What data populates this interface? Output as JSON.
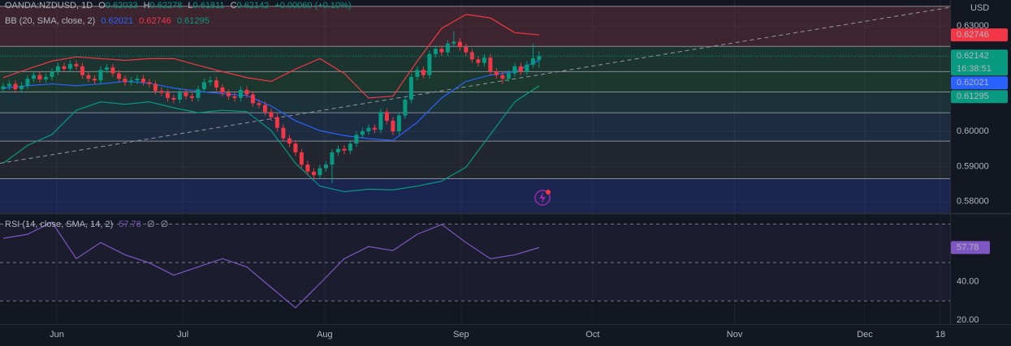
{
  "header": {
    "symbol": "OANDA:NZDUSD, 1D",
    "ohlc_keys": [
      "O",
      "H",
      "L",
      "C"
    ],
    "change": "+0.00060 (+0.10%)",
    "countdown": "16:38:51"
  },
  "chart_data": [
    {
      "type": "candlestick",
      "axis_label": "USD",
      "indicator_label": "BB (20, SMA, close, 2)",
      "xlim": [
        -0.53,
        155.5
      ],
      "xticks": [
        {
          "value": 8.8,
          "label": "Jun"
        },
        {
          "value": 29.5,
          "label": "Jul"
        },
        {
          "value": 52.8,
          "label": "Aug"
        },
        {
          "value": 75.2,
          "label": "Sep"
        },
        {
          "value": 96.8,
          "label": "Oct"
        },
        {
          "value": 120.1,
          "label": "Nov"
        },
        {
          "value": 141.5,
          "label": "Dec"
        },
        {
          "value": 153.9,
          "label": "18"
        }
      ],
      "ylim": [
        0.5767,
        0.6374
      ],
      "yticks": [
        {
          "value": 0.63,
          "label": "0.63000"
        },
        {
          "value": 0.6,
          "label": "0.60000"
        },
        {
          "value": 0.59,
          "label": "0.59000"
        },
        {
          "value": 0.58,
          "label": "0.58000"
        }
      ],
      "grid": true,
      "up_color": "#089981",
      "down_color": "#f23645",
      "open": [
        0.612,
        0.6128,
        0.6135,
        0.612,
        0.613,
        0.615,
        0.616,
        0.6148,
        0.6155,
        0.617,
        0.6185,
        0.6178,
        0.6192,
        0.6185,
        0.616,
        0.615,
        0.6145,
        0.6175,
        0.6182,
        0.6165,
        0.615,
        0.614,
        0.6145,
        0.615,
        0.614,
        0.6135,
        0.6115,
        0.611,
        0.6095,
        0.609,
        0.611,
        0.61,
        0.6095,
        0.612,
        0.614,
        0.6145,
        0.6125,
        0.611,
        0.61,
        0.6095,
        0.6118,
        0.6105,
        0.608,
        0.6075,
        0.6055,
        0.604,
        0.601,
        0.598,
        0.5965,
        0.594,
        0.5905,
        0.5885,
        0.5875,
        0.5895,
        0.5905,
        0.594,
        0.595,
        0.5945,
        0.5965,
        0.599,
        0.6,
        0.601,
        0.6005,
        0.6055,
        0.603,
        0.6,
        0.6045,
        0.609,
        0.6155,
        0.6175,
        0.616,
        0.622,
        0.6235,
        0.6225,
        0.625,
        0.6255,
        0.624,
        0.6225,
        0.6205,
        0.6195,
        0.621,
        0.617,
        0.616,
        0.615,
        0.6165,
        0.6185,
        0.617,
        0.619,
        0.62033
      ],
      "high": [
        0.6138,
        0.6145,
        0.6145,
        0.614,
        0.616,
        0.617,
        0.617,
        0.6165,
        0.618,
        0.6195,
        0.6195,
        0.6202,
        0.6202,
        0.6195,
        0.617,
        0.616,
        0.6185,
        0.6192,
        0.6192,
        0.6175,
        0.616,
        0.6155,
        0.616,
        0.616,
        0.615,
        0.6145,
        0.6125,
        0.612,
        0.6105,
        0.612,
        0.612,
        0.611,
        0.613,
        0.615,
        0.6155,
        0.6155,
        0.6135,
        0.612,
        0.611,
        0.6128,
        0.6128,
        0.6115,
        0.609,
        0.6085,
        0.6065,
        0.605,
        0.602,
        0.599,
        0.5975,
        0.595,
        0.5915,
        0.5895,
        0.5905,
        0.5915,
        0.595,
        0.596,
        0.596,
        0.5975,
        0.6,
        0.601,
        0.602,
        0.602,
        0.6065,
        0.6065,
        0.604,
        0.6055,
        0.61,
        0.6165,
        0.6185,
        0.6185,
        0.623,
        0.6245,
        0.6245,
        0.626,
        0.6285,
        0.6265,
        0.625,
        0.6235,
        0.6215,
        0.622,
        0.622,
        0.618,
        0.617,
        0.6175,
        0.6195,
        0.6195,
        0.62,
        0.625,
        0.62278
      ],
      "low": [
        0.611,
        0.6118,
        0.611,
        0.611,
        0.612,
        0.614,
        0.6138,
        0.6138,
        0.6145,
        0.616,
        0.6168,
        0.6168,
        0.6175,
        0.615,
        0.614,
        0.6135,
        0.6135,
        0.6165,
        0.6155,
        0.614,
        0.613,
        0.613,
        0.6135,
        0.613,
        0.6125,
        0.6105,
        0.61,
        0.6085,
        0.608,
        0.608,
        0.609,
        0.6085,
        0.6085,
        0.611,
        0.613,
        0.6115,
        0.61,
        0.609,
        0.6085,
        0.6085,
        0.6095,
        0.607,
        0.6065,
        0.6045,
        0.603,
        0.6,
        0.597,
        0.5955,
        0.593,
        0.5895,
        0.5875,
        0.5865,
        0.5865,
        0.5885,
        0.5852,
        0.593,
        0.5935,
        0.5935,
        0.5955,
        0.598,
        0.599,
        0.5995,
        0.5995,
        0.602,
        0.599,
        0.599,
        0.6035,
        0.608,
        0.6145,
        0.615,
        0.615,
        0.621,
        0.6215,
        0.6215,
        0.624,
        0.623,
        0.6215,
        0.6195,
        0.6185,
        0.6185,
        0.616,
        0.615,
        0.6135,
        0.614,
        0.6155,
        0.616,
        0.616,
        0.618,
        0.61811
      ],
      "close": [
        0.6128,
        0.6135,
        0.612,
        0.613,
        0.615,
        0.616,
        0.6148,
        0.6155,
        0.617,
        0.6185,
        0.6178,
        0.6192,
        0.6185,
        0.616,
        0.615,
        0.6145,
        0.6175,
        0.6182,
        0.6165,
        0.615,
        0.614,
        0.6145,
        0.615,
        0.614,
        0.6135,
        0.6115,
        0.611,
        0.6095,
        0.609,
        0.611,
        0.61,
        0.6095,
        0.612,
        0.614,
        0.6145,
        0.6125,
        0.611,
        0.61,
        0.6095,
        0.6118,
        0.6105,
        0.608,
        0.6075,
        0.6055,
        0.604,
        0.601,
        0.598,
        0.5965,
        0.594,
        0.5905,
        0.5885,
        0.5875,
        0.5895,
        0.5905,
        0.594,
        0.595,
        0.5945,
        0.5965,
        0.599,
        0.6,
        0.601,
        0.6005,
        0.6055,
        0.603,
        0.6,
        0.6045,
        0.609,
        0.6155,
        0.6175,
        0.616,
        0.622,
        0.6235,
        0.6225,
        0.625,
        0.6255,
        0.624,
        0.6225,
        0.6205,
        0.6195,
        0.621,
        0.617,
        0.616,
        0.615,
        0.6165,
        0.6185,
        0.617,
        0.619,
        0.6208,
        0.62142
      ],
      "overlays": [
        {
          "color": "#2962ff",
          "x": [
            0,
            4,
            8,
            12,
            16,
            20,
            24,
            28,
            32,
            36,
            40,
            44,
            48,
            52,
            56,
            60,
            64,
            68,
            72,
            76,
            80,
            84,
            88
          ],
          "values": [
            0.6123,
            0.613,
            0.6135,
            0.613,
            0.6135,
            0.6142,
            0.6137,
            0.6123,
            0.6114,
            0.6107,
            0.6102,
            0.6072,
            0.603,
            0.6002,
            0.5988,
            0.5979,
            0.5974,
            0.6026,
            0.6095,
            0.6142,
            0.616,
            0.617,
            0.62021
          ]
        },
        {
          "color": "#f23645",
          "x": [
            0,
            4,
            8,
            12,
            16,
            20,
            24,
            28,
            32,
            36,
            40,
            44,
            48,
            52,
            56,
            60,
            64,
            68,
            72,
            76,
            80,
            84,
            88
          ],
          "values": [
            0.6153,
            0.6177,
            0.62,
            0.6212,
            0.6207,
            0.6202,
            0.6207,
            0.6207,
            0.6188,
            0.617,
            0.6153,
            0.6142,
            0.6177,
            0.6207,
            0.6165,
            0.6095,
            0.61,
            0.62,
            0.6293,
            0.6333,
            0.6323,
            0.6281,
            0.62746
          ]
        },
        {
          "color": "#089981",
          "x": [
            0,
            4,
            8,
            12,
            16,
            20,
            24,
            28,
            32,
            36,
            40,
            44,
            48,
            52,
            56,
            60,
            64,
            68,
            72,
            76,
            80,
            84,
            88
          ],
          "values": [
            0.5909,
            0.596,
            0.5991,
            0.606,
            0.6084,
            0.6077,
            0.6084,
            0.6067,
            0.6053,
            0.606,
            0.6056,
            0.6002,
            0.5909,
            0.5844,
            0.5828,
            0.5835,
            0.5833,
            0.5844,
            0.5858,
            0.5898,
            0.5991,
            0.6084,
            0.61295
          ]
        }
      ],
      "levels": [
        {
          "value": 0.6356,
          "fill": "#3d2530"
        },
        {
          "value": 0.6242,
          "fill": "#1c3430"
        },
        {
          "value": 0.617,
          "fill": "#1b372e"
        },
        {
          "value": 0.6112,
          "fill": "#1a3238"
        },
        {
          "value": 0.6053,
          "fill": "#1e2c42"
        },
        {
          "value": 0.5972,
          "fill": "#22262f"
        },
        {
          "value": 0.5865,
          "fill": "#1a2650"
        }
      ],
      "trendline": {
        "x": [
          -0.53,
          155.5
        ],
        "values": [
          0.5909,
          0.6353
        ]
      }
    },
    {
      "type": "line",
      "title": "RSI (14, close, SMA, 14, 2)",
      "extra": [
        "∅",
        "∅"
      ],
      "color": "#7e57c2",
      "x": [
        0,
        4,
        8,
        12,
        16,
        20,
        24,
        28,
        32,
        36,
        40,
        44,
        48,
        52,
        56,
        60,
        64,
        68,
        72,
        76,
        80,
        84,
        88
      ],
      "values": [
        62.6,
        64.7,
        71.0,
        52.0,
        60.4,
        54.0,
        49.8,
        43.4,
        47.7,
        52.0,
        47.7,
        37.0,
        26.4,
        39.0,
        52.0,
        58.3,
        56.2,
        64.7,
        69.8,
        60.4,
        52.0,
        54.0,
        57.78
      ],
      "ylim": [
        17.9,
        75.3
      ],
      "yticks": [
        {
          "value": 40,
          "label": "40.00"
        },
        {
          "value": 20,
          "label": "20.00"
        }
      ],
      "bands": [
        70,
        50,
        30
      ]
    }
  ]
}
